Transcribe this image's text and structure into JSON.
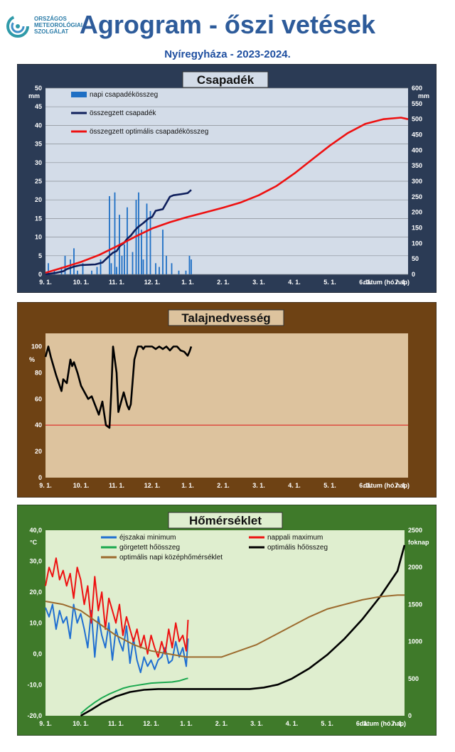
{
  "header": {
    "logo_text": "ORSZÁGOS\nMETEOROLÓGIAI\nSZOLGÁLAT",
    "title": "Agrogram - őszi vetések",
    "subtitle": "Nyíregyháza  - 2023-2024."
  },
  "colors": {
    "panel1_bg": "#2b3b55",
    "panel1_plot": "#d3dce8",
    "panel2_bg": "#6e4214",
    "panel2_plot": "#ddc39e",
    "panel3_bg": "#3f7a2a",
    "panel3_plot": "#dfeecf"
  },
  "x_ticks": [
    "9. 1.",
    "10. 1.",
    "11. 1.",
    "12. 1.",
    "1. 1.",
    "2. 1.",
    "3. 1.",
    "4. 1.",
    "5. 1.",
    "6. 1.",
    "7. 1."
  ],
  "x_axis_label": "dátum (hó.nap)",
  "chart_data": [
    {
      "type": "bar",
      "title": "Csapadék",
      "ylabel": "mm",
      "ylabel_right": "mm",
      "ylim": [
        0,
        50
      ],
      "ylim_right": [
        0,
        600
      ],
      "yticks": [
        0,
        5,
        10,
        15,
        20,
        25,
        30,
        35,
        40,
        45,
        50
      ],
      "yticks_right": [
        0,
        50,
        100,
        150,
        200,
        250,
        300,
        350,
        400,
        450,
        500,
        550,
        600
      ],
      "xlim": [
        0,
        10.2
      ],
      "legend": [
        "napi csapadékösszeg",
        "összegzett csapadék",
        "összegzett optimális csapadékösszeg"
      ],
      "legend_position": "top-left",
      "series": [
        {
          "name": "napi csapadékösszeg",
          "axis": "left",
          "kind": "bar",
          "color": "#1e6fc4",
          "x": [
            0.08,
            0.25,
            0.45,
            0.55,
            0.7,
            0.8,
            0.9,
            1.05,
            1.3,
            1.45,
            1.55,
            1.8,
            1.85,
            1.95,
            2.0,
            2.08,
            2.15,
            2.22,
            2.3,
            2.45,
            2.55,
            2.62,
            2.7,
            2.75,
            2.85,
            2.95,
            3.1,
            3.2,
            3.3,
            3.4,
            3.55,
            3.75,
            3.95,
            4.05,
            4.1
          ],
          "values": [
            3,
            1,
            2,
            5,
            4,
            7,
            1,
            3,
            1,
            2,
            4,
            21,
            3,
            22,
            2,
            16,
            5,
            8,
            18,
            6,
            20,
            22,
            12,
            4,
            19,
            17,
            3,
            2,
            12,
            5,
            3,
            1,
            1,
            5,
            4
          ]
        },
        {
          "name": "összegzett csapadék",
          "axis": "right",
          "kind": "line",
          "color": "#0f1f5c",
          "x": [
            0,
            0.3,
            0.5,
            0.6,
            0.8,
            1.0,
            1.4,
            1.6,
            1.8,
            1.9,
            2.0,
            2.1,
            2.2,
            2.3,
            2.4,
            2.5,
            2.6,
            2.75,
            2.9,
            3.0,
            3.1,
            3.3,
            3.4,
            3.5,
            3.6,
            3.8,
            4.0,
            4.1
          ],
          "values": [
            0,
            5,
            10,
            17,
            25,
            30,
            32,
            38,
            60,
            70,
            75,
            92,
            100,
            115,
            125,
            140,
            152,
            165,
            180,
            185,
            205,
            210,
            230,
            250,
            255,
            258,
            262,
            272
          ]
        },
        {
          "name": "összegzett optimális csapadékösszeg",
          "axis": "right",
          "kind": "line",
          "color": "#ee1111",
          "x": [
            0,
            0.5,
            1.0,
            1.5,
            2.0,
            2.5,
            3.0,
            3.5,
            4.0,
            4.5,
            5.0,
            5.5,
            6.0,
            6.5,
            7.0,
            7.5,
            8.0,
            8.5,
            9.0,
            9.5,
            10.0,
            10.2
          ],
          "values": [
            5,
            22,
            40,
            62,
            90,
            120,
            148,
            168,
            185,
            200,
            215,
            232,
            255,
            285,
            325,
            370,
            415,
            455,
            485,
            500,
            505,
            500
          ]
        }
      ]
    },
    {
      "type": "line",
      "title": "Talajnedvesség",
      "ylabel": "%",
      "ylim": [
        0,
        110
      ],
      "yticks": [
        0,
        20,
        40,
        60,
        80,
        100
      ],
      "xlim": [
        0,
        10.2
      ],
      "reference_line": {
        "value": 40,
        "color": "#dd1111"
      },
      "series": [
        {
          "name": "",
          "color": "#000000",
          "x": [
            0,
            0.08,
            0.15,
            0.3,
            0.45,
            0.5,
            0.6,
            0.7,
            0.75,
            0.8,
            0.9,
            1.0,
            1.1,
            1.2,
            1.3,
            1.4,
            1.5,
            1.6,
            1.7,
            1.8,
            1.85,
            1.9,
            2.0,
            2.05,
            2.1,
            2.2,
            2.3,
            2.35,
            2.4,
            2.5,
            2.6,
            2.7,
            2.75,
            2.8,
            2.9,
            3.0,
            3.1,
            3.2,
            3.3,
            3.4,
            3.5,
            3.6,
            3.7,
            3.8,
            3.9,
            4.0,
            4.05,
            4.1
          ],
          "values": [
            92,
            100,
            92,
            78,
            66,
            75,
            72,
            90,
            85,
            88,
            80,
            70,
            65,
            60,
            62,
            55,
            48,
            58,
            40,
            38,
            65,
            100,
            80,
            50,
            55,
            65,
            55,
            52,
            56,
            90,
            100,
            100,
            98,
            100,
            100,
            100,
            98,
            100,
            98,
            100,
            97,
            100,
            100,
            97,
            96,
            93,
            96,
            100
          ]
        }
      ]
    },
    {
      "type": "line",
      "title": "Hőmérséklet",
      "ylabel": "°C",
      "ylabel_right": "foknap",
      "ylim": [
        -20,
        40
      ],
      "ylim_right": [
        0,
        2500
      ],
      "yticks": [
        "-20,0",
        "-10,0",
        "0,0",
        "10,0",
        "20,0",
        "30,0",
        "40,0"
      ],
      "yticks_right": [
        0,
        500,
        1000,
        1500,
        2000,
        2500
      ],
      "xlim": [
        0,
        10.2
      ],
      "legend": [
        "éjszakai minimum",
        "nappali maximum",
        "görgetett hőösszeg",
        "optimális hőösszeg",
        "optimális napi középhőmérséklet"
      ],
      "legend_position": "top-left",
      "series": [
        {
          "name": "éjszakai minimum",
          "axis": "left",
          "color": "#1f6fd1",
          "x": [
            0,
            0.1,
            0.2,
            0.3,
            0.4,
            0.5,
            0.6,
            0.7,
            0.8,
            0.9,
            1.0,
            1.1,
            1.2,
            1.3,
            1.4,
            1.5,
            1.6,
            1.7,
            1.8,
            1.9,
            2.0,
            2.1,
            2.2,
            2.3,
            2.4,
            2.5,
            2.6,
            2.7,
            2.8,
            2.9,
            3.0,
            3.1,
            3.2,
            3.3,
            3.4,
            3.5,
            3.6,
            3.7,
            3.8,
            3.9,
            4.0,
            4.05
          ],
          "values": [
            15,
            12,
            16,
            8,
            14,
            10,
            12,
            5,
            16,
            10,
            13,
            8,
            2,
            14,
            -1,
            12,
            6,
            2,
            10,
            -2,
            8,
            4,
            1,
            9,
            -3,
            5,
            -2,
            -6,
            -1,
            -4,
            -2,
            -5,
            -2,
            -1,
            2,
            -3,
            -2,
            4,
            -1,
            2,
            -4,
            5
          ]
        },
        {
          "name": "nappali maximum",
          "axis": "left",
          "color": "#ee1111",
          "x": [
            0,
            0.1,
            0.2,
            0.3,
            0.4,
            0.5,
            0.6,
            0.7,
            0.8,
            0.9,
            1.0,
            1.1,
            1.2,
            1.3,
            1.4,
            1.5,
            1.6,
            1.7,
            1.8,
            1.9,
            2.0,
            2.1,
            2.2,
            2.3,
            2.4,
            2.5,
            2.6,
            2.7,
            2.8,
            2.9,
            3.0,
            3.1,
            3.2,
            3.3,
            3.4,
            3.5,
            3.6,
            3.7,
            3.8,
            3.9,
            4.0,
            4.05
          ],
          "values": [
            22,
            28,
            25,
            31,
            24,
            27,
            22,
            26,
            18,
            28,
            24,
            16,
            22,
            10,
            25,
            14,
            20,
            8,
            18,
            14,
            10,
            16,
            6,
            12,
            8,
            4,
            8,
            2,
            6,
            0,
            6,
            2,
            -1,
            4,
            0,
            8,
            2,
            10,
            4,
            6,
            1,
            11
          ]
        },
        {
          "name": "görgetett hőösszeg",
          "axis": "right",
          "color": "#1aa84e",
          "x": [
            1.0,
            1.2,
            1.4,
            1.6,
            1.8,
            2.0,
            2.2,
            2.4,
            2.6,
            2.8,
            3.0,
            3.2,
            3.4,
            3.6,
            3.8,
            4.0,
            4.05
          ],
          "values": [
            30,
            110,
            180,
            240,
            290,
            330,
            370,
            395,
            410,
            425,
            440,
            445,
            450,
            455,
            470,
            500,
            505
          ]
        },
        {
          "name": "optimális hőösszeg",
          "axis": "right",
          "color": "#000000",
          "x": [
            1.0,
            1.3,
            1.6,
            2.0,
            2.4,
            2.8,
            3.2,
            4.0,
            5.0,
            5.8,
            6.2,
            6.6,
            7.0,
            7.5,
            8.0,
            8.5,
            9.0,
            9.5,
            10.0,
            10.2
          ],
          "values": [
            0,
            80,
            170,
            260,
            320,
            350,
            360,
            360,
            360,
            360,
            380,
            420,
            500,
            640,
            820,
            1040,
            1300,
            1600,
            1950,
            2300
          ]
        },
        {
          "name": "optimális napi középhőmérséklet",
          "axis": "left",
          "color": "#9c6b2e",
          "x": [
            0,
            0.5,
            1.0,
            1.5,
            2.0,
            2.5,
            3.0,
            3.5,
            4.0,
            4.5,
            5.0,
            5.5,
            6.0,
            6.5,
            7.0,
            7.5,
            8.0,
            8.5,
            9.0,
            9.5,
            10.0,
            10.2
          ],
          "values": [
            17,
            16,
            14,
            10,
            6,
            3,
            1,
            0,
            -1,
            -1,
            -1,
            1,
            3,
            6,
            9,
            12,
            14.5,
            16,
            17.5,
            18.5,
            19,
            19
          ]
        }
      ]
    }
  ]
}
